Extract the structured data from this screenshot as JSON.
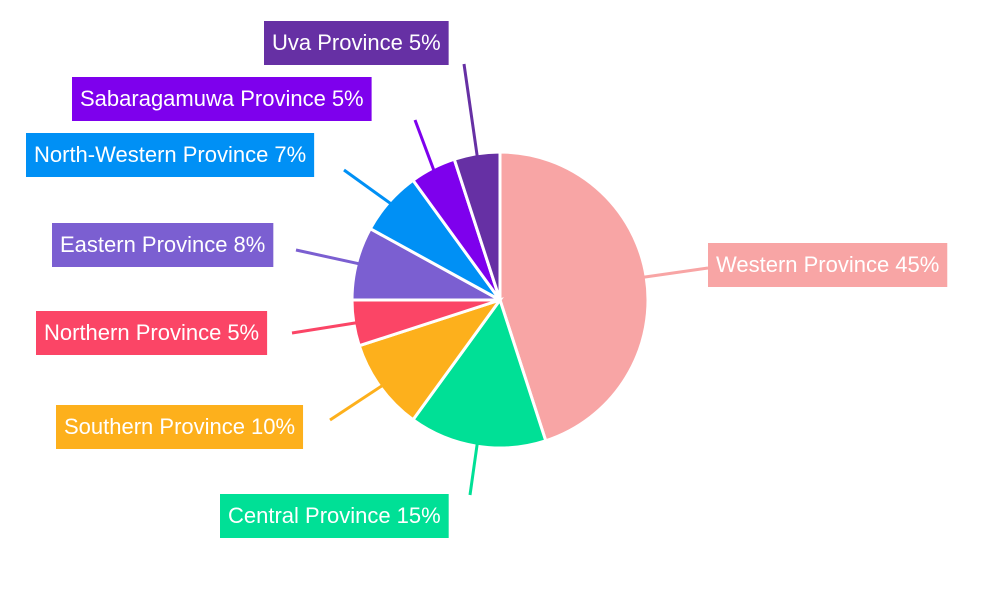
{
  "chart_data": {
    "type": "pie",
    "categories": [
      "Western Province",
      "Central Province",
      "Southern Province",
      "Northern Province",
      "Eastern Province",
      "North-Western Province",
      "Sabaragamuwa Province",
      "Uva Province"
    ],
    "values": [
      45,
      15,
      10,
      5,
      8,
      7,
      5,
      5
    ],
    "value_labels": [
      "45%",
      "15%",
      "10%",
      "5%",
      "8%",
      "7%",
      "5%",
      "5%"
    ],
    "colors": [
      "#f8a5a5",
      "#00e096",
      "#fdb01c",
      "#fb4566",
      "#7b5fd1",
      "#0090f5",
      "#7e00ed",
      "#6630a4"
    ]
  }
}
